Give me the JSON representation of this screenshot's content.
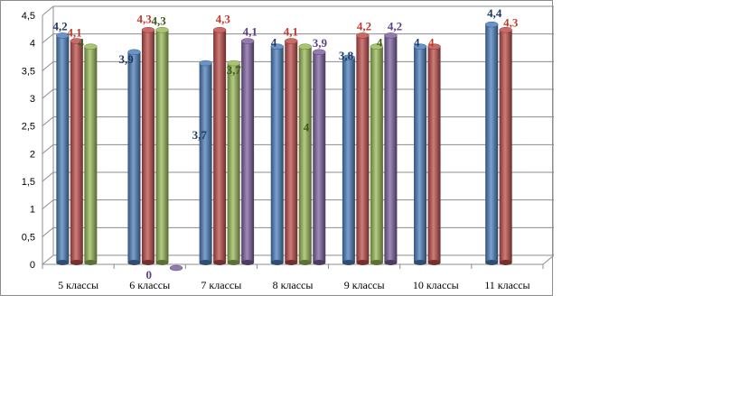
{
  "chart_data": {
    "type": "bar",
    "title": "",
    "xlabel": "",
    "ylabel": "",
    "ylim": [
      0,
      4.5
    ],
    "y_ticks": [
      "0",
      "0,5",
      "1",
      "1,5",
      "2",
      "2,5",
      "3",
      "3,5",
      "4",
      "4,5"
    ],
    "y_tick_values": [
      0,
      0.5,
      1,
      1.5,
      2,
      2.5,
      3,
      3.5,
      4,
      4.5
    ],
    "grid": true,
    "legend": "none",
    "style": "3d-cylinder",
    "categories": [
      "5 классы",
      "6 классы",
      "7 классы",
      "8 классы",
      "9 классы",
      "10 классы",
      "11 классы"
    ],
    "series": [
      {
        "color": "#4f81bd",
        "values": [
          4.2,
          3.9,
          3.7,
          4,
          3.8,
          4,
          4.4
        ],
        "labels": [
          "4,2",
          "3,9",
          "3,7",
          "4",
          "3,8",
          "4",
          "4,4"
        ]
      },
      {
        "color": "#c0504d",
        "values": [
          4.1,
          4.3,
          4.3,
          4.1,
          4.2,
          4,
          4.3
        ],
        "labels": [
          "4,1",
          "4,3",
          "4,3",
          "4,1",
          "4,2",
          "4",
          "4,3"
        ]
      },
      {
        "color": "#9bbb59",
        "values": [
          4,
          4.3,
          3.7,
          4,
          4,
          null,
          null
        ],
        "labels": [
          "4",
          "4,3",
          "3,7",
          "4",
          "4",
          null,
          null
        ]
      },
      {
        "color": "#8064a2",
        "values": [
          null,
          0,
          4.1,
          3.9,
          4.2,
          null,
          null
        ],
        "labels": [
          null,
          "0",
          "4,1",
          "3,9",
          "4,2",
          null,
          null
        ]
      }
    ],
    "label_colors": [
      "#1f3864",
      "#c0392b",
      "#3a5a1a",
      "#5b3f86"
    ]
  }
}
